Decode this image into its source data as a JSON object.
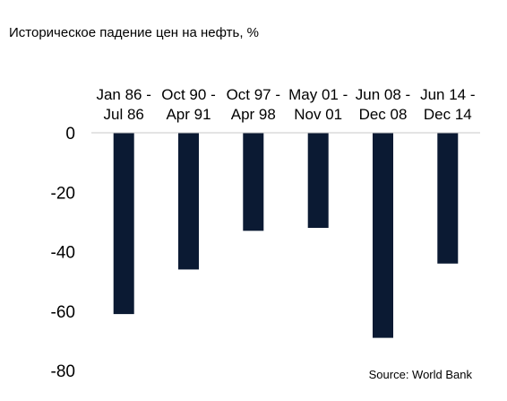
{
  "chart_data": {
    "type": "bar",
    "title": "Историческое падение цен на нефть, %",
    "categories": [
      [
        "Jan 86 -",
        "Jul 86"
      ],
      [
        "Oct 90 -",
        "Apr 91"
      ],
      [
        "Oct 97 -",
        "Apr 98"
      ],
      [
        "May 01 -",
        "Nov 01"
      ],
      [
        "Jun 08 -",
        "Dec 08"
      ],
      [
        "Jun 14 -",
        "Dec 14"
      ]
    ],
    "values": [
      -61,
      -46,
      -33,
      -32,
      -69,
      -44
    ],
    "ylim": [
      -80,
      0
    ],
    "yticks": [
      0,
      -20,
      -40,
      -60,
      -80
    ],
    "xlabel": "",
    "ylabel": "",
    "source": "Source: World Bank",
    "bar_color": "#0b1a33",
    "grid": false,
    "legend": "none"
  }
}
